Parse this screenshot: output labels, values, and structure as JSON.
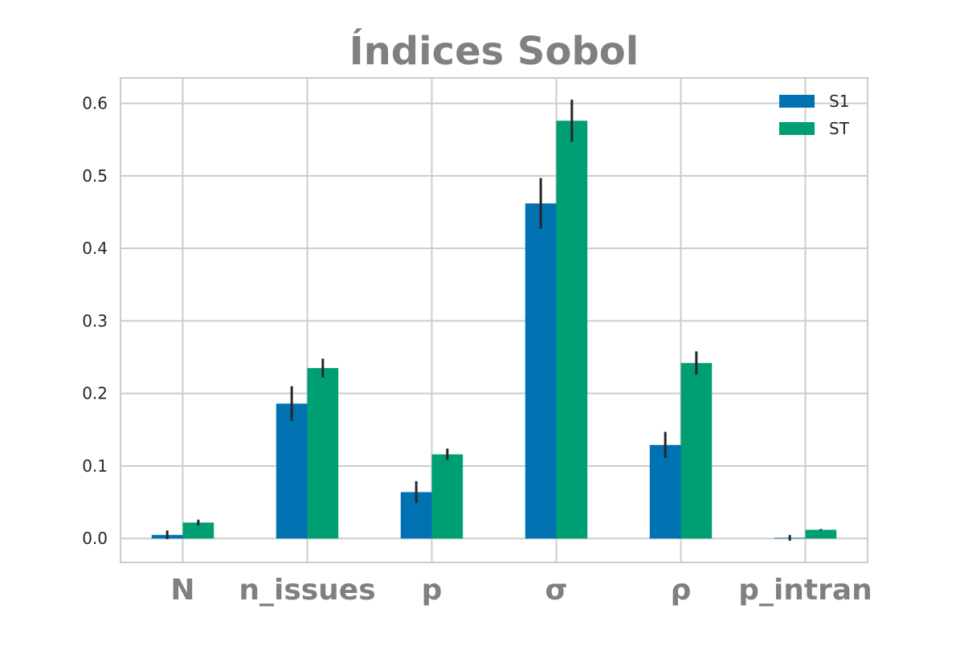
{
  "chart_data": {
    "type": "bar",
    "title": "Índices Sobol",
    "xlabel": "",
    "ylabel": "",
    "categories": [
      "N",
      "n_issues",
      "p",
      "σ",
      "ρ",
      "p_intran"
    ],
    "series": [
      {
        "name": "S1",
        "color": "#0072b2",
        "values": [
          0.005,
          0.186,
          0.064,
          0.462,
          0.129,
          0.001
        ],
        "errors": [
          0.006,
          0.024,
          0.015,
          0.035,
          0.018,
          0.004
        ]
      },
      {
        "name": "ST",
        "color": "#009e73",
        "values": [
          0.022,
          0.235,
          0.116,
          0.576,
          0.242,
          0.012
        ],
        "errors": [
          0.004,
          0.013,
          0.008,
          0.029,
          0.016,
          0.001
        ]
      }
    ],
    "ylim": [
      -0.033,
      0.635
    ],
    "yticks": [
      0.0,
      0.1,
      0.2,
      0.3,
      0.4,
      0.5,
      0.6
    ],
    "ytick_labels": [
      "0.0",
      "0.1",
      "0.2",
      "0.3",
      "0.4",
      "0.5",
      "0.6"
    ],
    "grid": true,
    "legend_position": "top-right",
    "error_bar_color": "#262626"
  }
}
